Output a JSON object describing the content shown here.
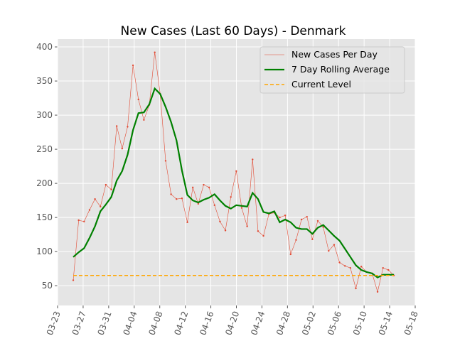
{
  "chart_data": {
    "type": "line",
    "title": "New Cases (Last 60 Days) - Denmark",
    "categories": [
      null,
      null,
      null,
      null,
      null,
      null,
      null,
      null,
      null,
      null,
      null,
      null,
      null,
      null,
      null,
      null,
      null,
      null,
      null,
      null,
      null,
      null,
      null,
      null,
      null,
      null,
      null,
      null,
      null,
      null,
      null,
      null,
      null,
      null,
      null,
      null,
      null,
      null,
      null,
      null,
      null,
      null,
      null,
      null,
      null,
      null,
      null,
      null,
      null,
      null,
      null,
      null,
      null,
      null,
      null,
      null,
      null,
      null,
      null,
      null
    ],
    "series": [
      {
        "name": "New Cases Per Day",
        "color": "#e24a33",
        "style": "thin-markers",
        "values": [
          58,
          146,
          144,
          161,
          177,
          166,
          198,
          191,
          284,
          251,
          283,
          373,
          323,
          293,
          315,
          392,
          331,
          233,
          184,
          177,
          178,
          143,
          194,
          170,
          198,
          194,
          168,
          144,
          131,
          180,
          218,
          164,
          137,
          235,
          130,
          123,
          155,
          157,
          150,
          153,
          96,
          117,
          147,
          151,
          118,
          145,
          136,
          101,
          110,
          84,
          79,
          76,
          46,
          78,
          70,
          68,
          41,
          76,
          73,
          65
        ]
      },
      {
        "name": "7 Day Rolling Average",
        "color": "#008000",
        "style": "thick",
        "values": [
          92,
          99,
          105,
          120,
          137,
          159,
          169,
          180,
          204,
          218,
          242,
          278,
          303,
          304,
          316,
          339,
          331,
          312,
          290,
          263,
          219,
          183,
          175,
          172,
          176,
          179,
          184,
          175,
          167,
          163,
          168,
          167,
          166,
          186,
          177,
          158,
          156,
          159,
          143,
          147,
          143,
          135,
          133,
          133,
          126,
          135,
          139,
          131,
          123,
          116,
          104,
          92,
          80,
          73,
          70,
          68,
          62,
          66,
          66,
          66
        ]
      },
      {
        "name": "Current Level",
        "color": "#ffa500",
        "style": "dashed",
        "value": 65
      }
    ],
    "xlim": [
      -2.88,
      62.92
    ],
    "xticks": [
      {
        "value": -2.88,
        "label": "03-23"
      },
      {
        "value": 1.82,
        "label": "03-27"
      },
      {
        "value": 6.52,
        "label": "03-31"
      },
      {
        "value": 11.22,
        "label": "04-04"
      },
      {
        "value": 15.92,
        "label": "04-08"
      },
      {
        "value": 20.62,
        "label": "04-12"
      },
      {
        "value": 25.32,
        "label": "04-16"
      },
      {
        "value": 30.02,
        "label": "04-20"
      },
      {
        "value": 34.72,
        "label": "04-24"
      },
      {
        "value": 39.42,
        "label": "04-28"
      },
      {
        "value": 44.12,
        "label": "05-02"
      },
      {
        "value": 48.82,
        "label": "05-06"
      },
      {
        "value": 53.52,
        "label": "05-10"
      },
      {
        "value": 58.22,
        "label": "05-14"
      },
      {
        "value": 62.92,
        "label": "05-18"
      }
    ],
    "ylim": [
      21,
      411.5
    ],
    "yticks": [
      50,
      100,
      150,
      200,
      250,
      300,
      350,
      400
    ],
    "grid": true,
    "legend": "upper right"
  }
}
